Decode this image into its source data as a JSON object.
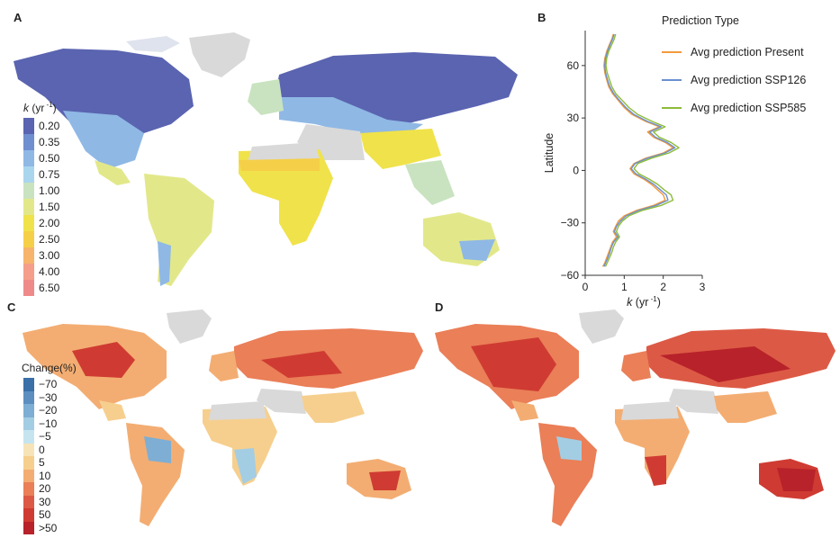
{
  "panels": {
    "a": "A",
    "b": "B",
    "c": "C",
    "d": "D"
  },
  "legend_k": {
    "title_var": "k",
    "title_unit": " (yr",
    "title_exp": " -1",
    "title_close": ")",
    "items": [
      {
        "label": "0.20",
        "color": "#5a64b0"
      },
      {
        "label": "0.35",
        "color": "#6f8fd0"
      },
      {
        "label": "0.50",
        "color": "#8fb8e5"
      },
      {
        "label": "0.75",
        "color": "#a9d6ee"
      },
      {
        "label": "1.00",
        "color": "#c9e3c0"
      },
      {
        "label": "1.50",
        "color": "#e2e88a"
      },
      {
        "label": "2.00",
        "color": "#f0e24a"
      },
      {
        "label": "2.50",
        "color": "#f6cf48"
      },
      {
        "label": "3.00",
        "color": "#f7b46c"
      },
      {
        "label": "4.00",
        "color": "#f59f8a"
      },
      {
        "label": "6.50",
        "color": "#ef8a8a"
      }
    ]
  },
  "legend_change": {
    "title": "Change(%)",
    "items": [
      {
        "label": "−70",
        "color": "#3a6fa8"
      },
      {
        "label": "−30",
        "color": "#5c8fc0"
      },
      {
        "label": "−20",
        "color": "#7eaed3"
      },
      {
        "label": "−10",
        "color": "#a3cde3"
      },
      {
        "label": "−5",
        "color": "#c6e4ef"
      },
      {
        "label": "0",
        "color": "#f6e3b8"
      },
      {
        "label": "5",
        "color": "#f6cf8e"
      },
      {
        "label": "10",
        "color": "#f3ad72"
      },
      {
        "label": "20",
        "color": "#ea7f58"
      },
      {
        "label": "30",
        "color": "#dc5a45"
      },
      {
        "label": "50",
        "color": "#cf3b32"
      },
      {
        "label": ">50",
        "color": "#b8222a"
      }
    ]
  },
  "chart_data": {
    "type": "line",
    "orientation": "x-value vs latitude",
    "xlabel_var": "k",
    "xlabel_unit": " (yr",
    "xlabel_exp": " -1",
    "xlabel_close": ")",
    "ylabel": "Latitude",
    "xlim": [
      0,
      3
    ],
    "ylim": [
      -60,
      80
    ],
    "xticks": [
      "0",
      "1",
      "2",
      "3"
    ],
    "yticks": [
      "60",
      "30",
      "0",
      "−30",
      "−60"
    ],
    "legend_title": "Prediction Type",
    "legend_position": "top-right",
    "latitudes": [
      78,
      75,
      72,
      68,
      64,
      60,
      56,
      52,
      48,
      44,
      40,
      36,
      32,
      28,
      25,
      22,
      19,
      16,
      13,
      10,
      7,
      4,
      1,
      -2,
      -5,
      -8,
      -11,
      -14,
      -17,
      -20,
      -23,
      -26,
      -29,
      -32,
      -35,
      -38,
      -41,
      -44,
      -47,
      -50,
      -53,
      -55
    ],
    "series": [
      {
        "name": "Avg prediction Present",
        "color": "#f39a3c",
        "values": [
          0.72,
          0.68,
          0.62,
          0.55,
          0.5,
          0.48,
          0.5,
          0.55,
          0.6,
          0.7,
          0.85,
          1.0,
          1.2,
          1.55,
          1.9,
          1.6,
          1.75,
          2.05,
          2.25,
          2.0,
          1.55,
          1.25,
          1.15,
          1.25,
          1.5,
          1.7,
          1.85,
          2.0,
          2.05,
          1.75,
          1.3,
          1.0,
          0.85,
          0.78,
          0.72,
          0.8,
          0.7,
          0.65,
          0.6,
          0.55,
          0.5,
          0.45
        ]
      },
      {
        "name": "Avg prediction SSP126",
        "color": "#6b8fcf",
        "values": [
          0.74,
          0.7,
          0.64,
          0.57,
          0.52,
          0.5,
          0.52,
          0.57,
          0.63,
          0.73,
          0.88,
          1.04,
          1.25,
          1.6,
          1.95,
          1.65,
          1.8,
          2.1,
          2.3,
          2.05,
          1.6,
          1.28,
          1.18,
          1.3,
          1.55,
          1.76,
          1.92,
          2.08,
          2.12,
          1.82,
          1.36,
          1.05,
          0.9,
          0.8,
          0.75,
          0.84,
          0.73,
          0.67,
          0.63,
          0.58,
          0.52,
          0.48
        ]
      },
      {
        "name": "Avg prediction SSP585",
        "color": "#8dbb3a",
        "values": [
          0.78,
          0.74,
          0.68,
          0.6,
          0.55,
          0.53,
          0.56,
          0.62,
          0.68,
          0.78,
          0.95,
          1.12,
          1.35,
          1.72,
          2.05,
          1.75,
          1.9,
          2.2,
          2.4,
          2.15,
          1.7,
          1.35,
          1.25,
          1.38,
          1.64,
          1.86,
          2.02,
          2.2,
          2.25,
          1.95,
          1.45,
          1.12,
          0.95,
          0.85,
          0.8,
          0.88,
          0.78,
          0.72,
          0.68,
          0.62,
          0.56,
          0.52
        ]
      }
    ]
  }
}
